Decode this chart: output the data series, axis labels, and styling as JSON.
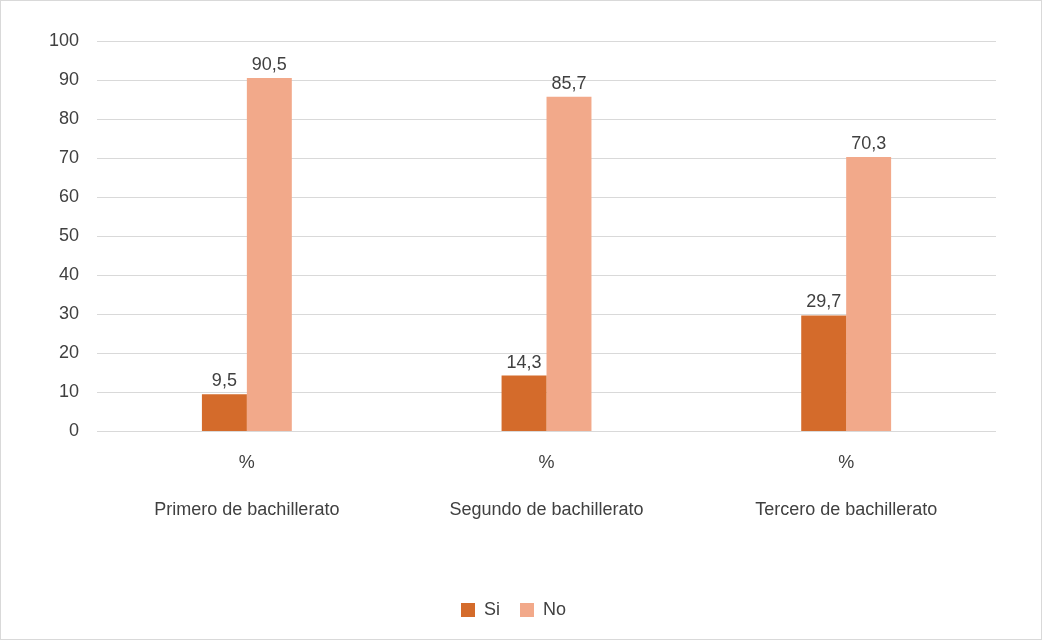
{
  "chart_data": {
    "type": "bar",
    "categories": [
      "Primero de bachillerato",
      "Segundo de bachillerato",
      "Tercero de bachillerato"
    ],
    "series": [
      {
        "name": "Si",
        "color": "#d46b2b",
        "values": [
          9.5,
          14.3,
          29.7
        ],
        "value_labels": [
          "9,5",
          "14,3",
          "29,7"
        ]
      },
      {
        "name": "No",
        "color": "#f2a98a",
        "values": [
          90.5,
          85.7,
          70.3
        ],
        "value_labels": [
          "90,5",
          "85,7",
          "70,3"
        ]
      }
    ],
    "ylim": [
      0,
      100
    ],
    "yticks": [
      0,
      10,
      20,
      30,
      40,
      50,
      60,
      70,
      80,
      90,
      100
    ],
    "grid": "y",
    "legend": "bottom",
    "annotations": [
      "%",
      "%",
      "%"
    ]
  }
}
